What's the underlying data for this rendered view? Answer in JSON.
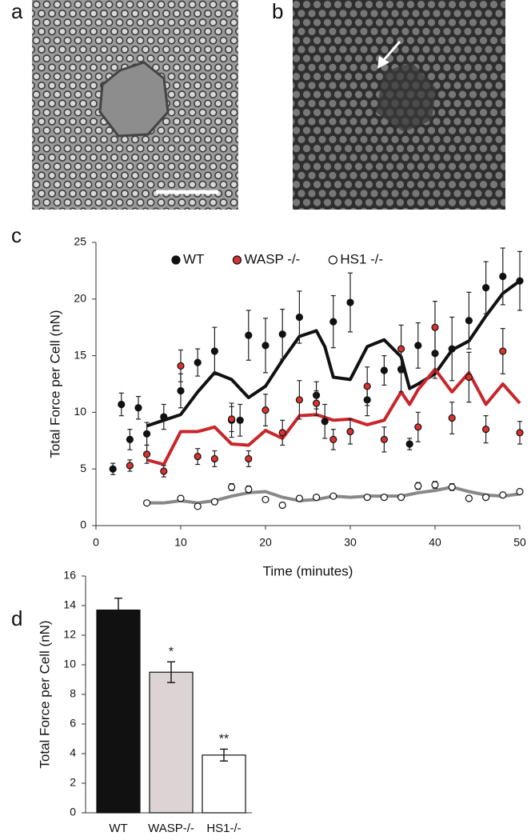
{
  "panels": [
    "a",
    "b",
    "c",
    "d"
  ],
  "chart_data": [
    {
      "type": "scatter",
      "xlabel": "Time (minutes)",
      "ylabel": "Total Force per Cell (nN)",
      "xlim": [
        0,
        50
      ],
      "xticks": [
        0,
        10,
        20,
        30,
        40,
        50
      ],
      "ylim": [
        0,
        25
      ],
      "yticks": [
        0,
        5,
        10,
        15,
        20,
        25
      ],
      "legend": "top",
      "series": [
        {
          "name": "WT",
          "color": "#111111",
          "line_color": "#111111",
          "x": [
            2,
            3,
            4,
            5,
            6,
            8,
            10,
            12,
            14,
            16,
            17,
            18,
            20,
            22,
            24,
            26,
            27,
            28,
            30,
            32,
            34,
            36,
            37,
            38,
            40,
            42,
            44,
            46,
            48,
            50
          ],
          "values": [
            5.0,
            10.7,
            7.6,
            10.4,
            8.1,
            9.6,
            11.9,
            14.4,
            15.4,
            9.3,
            9.3,
            16.8,
            15.9,
            16.9,
            18.4,
            11.5,
            9.2,
            18.0,
            19.7,
            11.1,
            13.7,
            13.8,
            7.2,
            15.9,
            15.2,
            15.6,
            18.1,
            21.0,
            22.0,
            21.6
          ],
          "errors": [
            0.5,
            1.0,
            0.9,
            1.0,
            1.0,
            1.1,
            1.5,
            1.2,
            2.1,
            1.5,
            1.4,
            2.2,
            2.4,
            2.2,
            2.3,
            1.2,
            1.5,
            2.3,
            2.6,
            1.4,
            1.3,
            2.0,
            0.5,
            2.0,
            2.2,
            2.8,
            2.5,
            2.3,
            2.5,
            2.6
          ],
          "trend_x": [
            6,
            8,
            10,
            12,
            14,
            16,
            18,
            20,
            22,
            24,
            26,
            27,
            28,
            30,
            32,
            34,
            36,
            37,
            38,
            40,
            42,
            44,
            46,
            48,
            50
          ],
          "trend_values": [
            8.8,
            9.3,
            9.8,
            11.8,
            13.5,
            12.9,
            11.3,
            12.3,
            14.6,
            16.7,
            17.2,
            15.8,
            13.1,
            12.9,
            15.8,
            16.4,
            14.9,
            12.1,
            12.5,
            13.4,
            15.5,
            16.3,
            18.5,
            20.5,
            21.6
          ]
        },
        {
          "name": "WASP -/-",
          "color": "#d9322f",
          "line_color": "#c8262b",
          "x": [
            4,
            6,
            8,
            10,
            12,
            14,
            16,
            18,
            20,
            22,
            24,
            26,
            28,
            30,
            32,
            34,
            36,
            38,
            40,
            42,
            44,
            46,
            48,
            50
          ],
          "values": [
            5.3,
            6.3,
            4.8,
            14.1,
            6.1,
            5.9,
            9.4,
            5.9,
            10.2,
            8.2,
            11.1,
            10.8,
            7.6,
            8.3,
            12.3,
            7.6,
            15.6,
            8.7,
            17.5,
            9.5,
            13.1,
            8.5,
            15.4,
            8.2
          ],
          "errors": [
            0.5,
            0.8,
            0.5,
            1.4,
            0.7,
            0.7,
            1.1,
            0.7,
            1.4,
            1.1,
            1.7,
            1.1,
            0.9,
            1.1,
            1.7,
            1.1,
            2.1,
            1.3,
            2.3,
            1.4,
            2.2,
            1.2,
            2.0,
            1.0
          ],
          "trend_x": [
            6,
            8,
            10,
            12,
            14,
            16,
            18,
            20,
            22,
            24,
            26,
            28,
            30,
            32,
            34,
            36,
            37,
            38,
            40,
            42,
            44,
            46,
            48,
            50
          ],
          "trend_values": [
            5.8,
            5.4,
            8.3,
            8.3,
            8.7,
            7.2,
            7.1,
            8.4,
            7.7,
            9.7,
            9.8,
            9.3,
            9.4,
            8.9,
            9.3,
            11.8,
            10.7,
            12.0,
            13.8,
            11.8,
            13.5,
            10.7,
            12.5,
            10.8
          ]
        },
        {
          "name": "HS1 -/-",
          "color": "#ffffff",
          "line_color": "#888888",
          "x": [
            6,
            10,
            12,
            14,
            16,
            18,
            20,
            22,
            24,
            26,
            28,
            32,
            34,
            36,
            38,
            40,
            42,
            44,
            46,
            48,
            50
          ],
          "values": [
            2.0,
            2.4,
            1.7,
            2.1,
            3.4,
            3.2,
            2.3,
            1.8,
            2.4,
            2.5,
            2.6,
            2.5,
            2.5,
            2.5,
            3.5,
            3.6,
            3.4,
            2.4,
            2.5,
            2.7,
            3.0
          ],
          "errors": [
            0.2,
            0.2,
            0.2,
            0.2,
            0.3,
            0.3,
            0.2,
            0.2,
            0.2,
            0.2,
            0.2,
            0.2,
            0.2,
            0.2,
            0.3,
            0.3,
            0.3,
            0.2,
            0.2,
            0.2,
            0.2
          ],
          "trend_x": [
            6,
            8,
            10,
            12,
            14,
            16,
            18,
            20,
            22,
            24,
            26,
            28,
            30,
            32,
            34,
            36,
            38,
            40,
            42,
            44,
            46,
            48,
            50
          ],
          "trend_values": [
            2.0,
            2.0,
            2.2,
            2.0,
            2.2,
            2.6,
            2.9,
            3.0,
            2.5,
            2.2,
            2.3,
            2.6,
            2.5,
            2.6,
            2.6,
            2.6,
            2.9,
            3.1,
            3.4,
            3.0,
            2.7,
            2.6,
            2.8
          ]
        }
      ]
    },
    {
      "type": "bar",
      "ylabel": "Total Force per Cell (nN)",
      "categories": [
        "WT",
        "WASP-/-",
        "HS1-/-"
      ],
      "values": [
        13.7,
        9.5,
        3.9
      ],
      "errors": [
        0.8,
        0.7,
        0.4
      ],
      "colors": [
        "#111111",
        "#dcd4d4",
        "#ffffff"
      ],
      "annotations": [
        null,
        "*",
        "**"
      ],
      "ylim": [
        0,
        16
      ],
      "yticks": [
        0,
        2,
        4,
        6,
        8,
        10,
        12,
        14,
        16
      ]
    }
  ]
}
